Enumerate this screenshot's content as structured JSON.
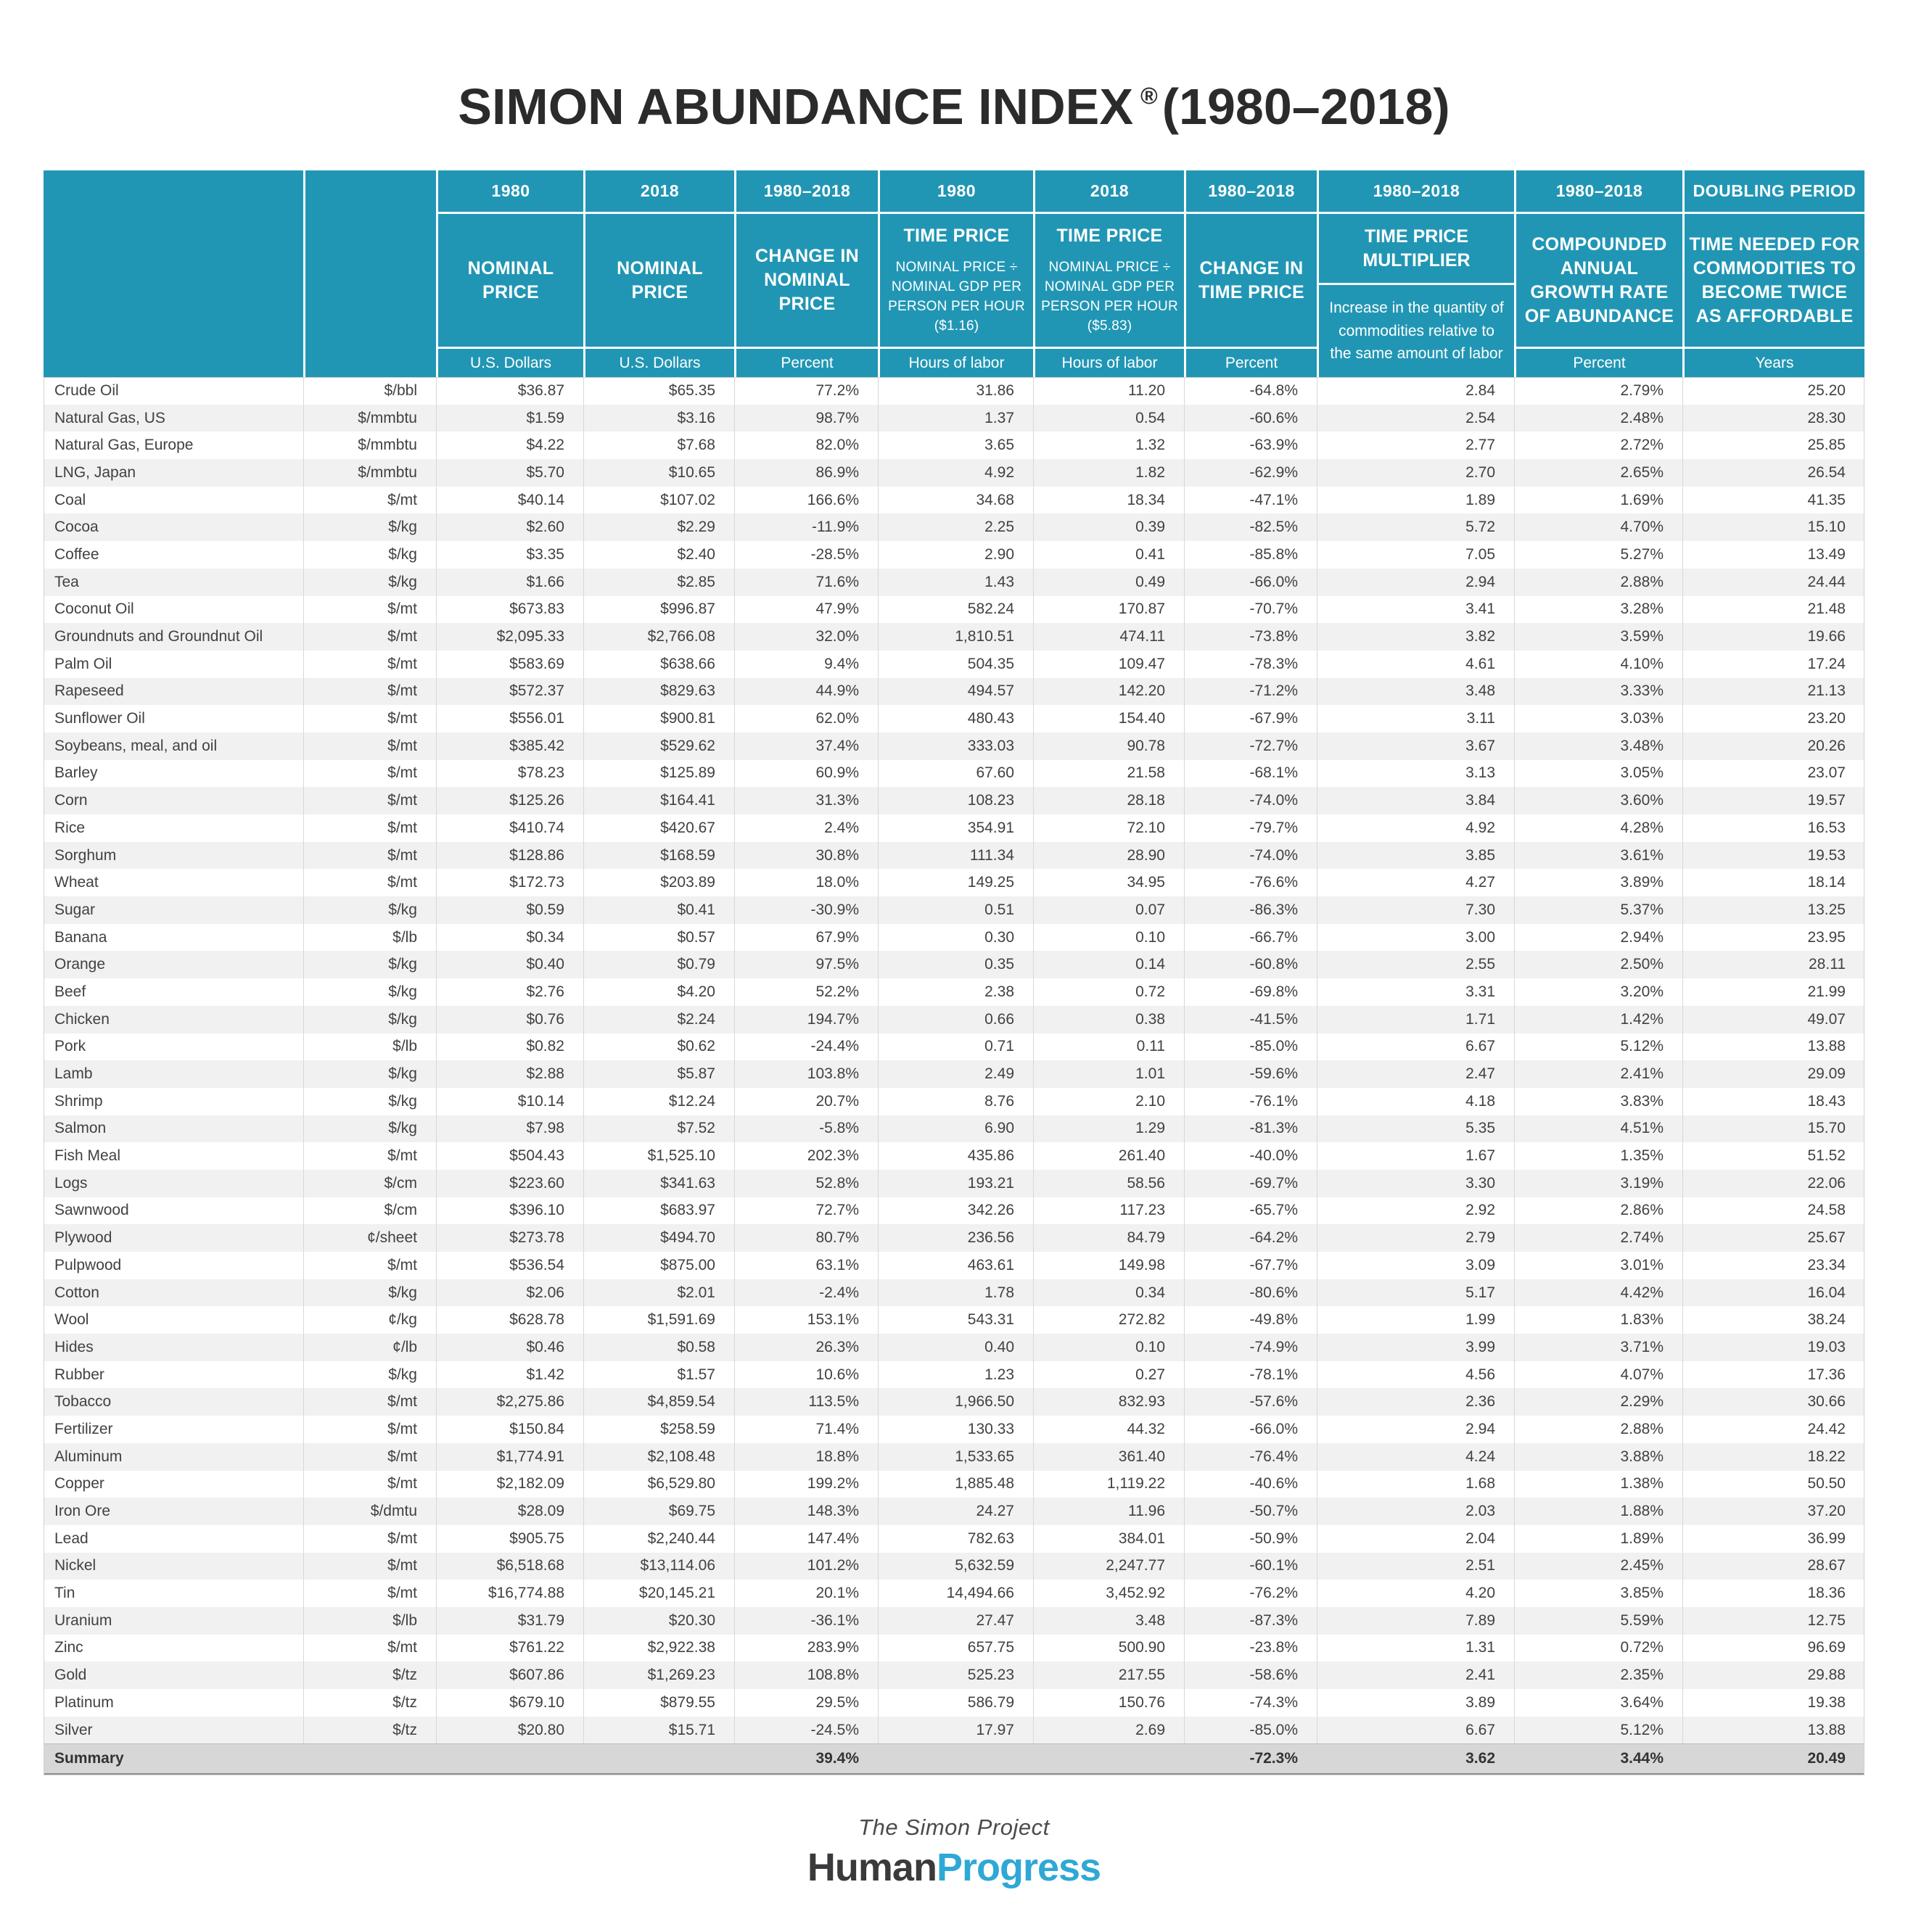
{
  "title": {
    "main": "SIMON ABUNDANCE INDEX",
    "registered": "®",
    "range": "(1980–2018)"
  },
  "chart_data": {
    "type": "table",
    "title": "SIMON ABUNDANCE INDEX ® (1980–2018)",
    "columns": [
      {
        "period": "",
        "title": "",
        "subtitle": "",
        "unit": ""
      },
      {
        "period": "",
        "title": "",
        "subtitle": "",
        "unit": ""
      },
      {
        "period": "1980",
        "title": "NOMINAL PRICE",
        "subtitle": "",
        "unit": "U.S. Dollars"
      },
      {
        "period": "2018",
        "title": "NOMINAL PRICE",
        "subtitle": "",
        "unit": "U.S. Dollars"
      },
      {
        "period": "1980–2018",
        "title": "CHANGE IN NOMINAL PRICE",
        "subtitle": "",
        "unit": "Percent"
      },
      {
        "period": "1980",
        "title": "TIME PRICE",
        "subtitle": "NOMINAL PRICE ÷ NOMINAL GDP PER PERSON PER HOUR ($1.16)",
        "unit": "Hours of labor"
      },
      {
        "period": "2018",
        "title": "TIME PRICE",
        "subtitle": "NOMINAL PRICE ÷ NOMINAL GDP PER PERSON PER HOUR ($5.83)",
        "unit": "Hours of labor"
      },
      {
        "period": "1980–2018",
        "title": "CHANGE IN TIME PRICE",
        "subtitle": "",
        "unit": "Percent"
      },
      {
        "period": "1980–2018",
        "title": "TIME PRICE MULTIPLIER",
        "subtitle": "Increase in the quantity of commodities relative to the same amount of labor",
        "unit": ""
      },
      {
        "period": "1980–2018",
        "title": "COMPOUNDED ANNUAL GROWTH RATE OF ABUNDANCE",
        "subtitle": "",
        "unit": "Percent"
      },
      {
        "period": "DOUBLING PERIOD",
        "title": "TIME NEEDED FOR COMMODITIES TO BECOME TWICE AS AFFORDABLE",
        "subtitle": "",
        "unit": "Years"
      }
    ],
    "rows": [
      [
        "Crude Oil",
        "$/bbl",
        "$36.87",
        "$65.35",
        "77.2%",
        "31.86",
        "11.20",
        "-64.8%",
        "2.84",
        "2.79%",
        "25.20"
      ],
      [
        "Natural Gas, US",
        "$/mmbtu",
        "$1.59",
        "$3.16",
        "98.7%",
        "1.37",
        "0.54",
        "-60.6%",
        "2.54",
        "2.48%",
        "28.30"
      ],
      [
        "Natural Gas, Europe",
        "$/mmbtu",
        "$4.22",
        "$7.68",
        "82.0%",
        "3.65",
        "1.32",
        "-63.9%",
        "2.77",
        "2.72%",
        "25.85"
      ],
      [
        "LNG, Japan",
        "$/mmbtu",
        "$5.70",
        "$10.65",
        "86.9%",
        "4.92",
        "1.82",
        "-62.9%",
        "2.70",
        "2.65%",
        "26.54"
      ],
      [
        "Coal",
        "$/mt",
        "$40.14",
        "$107.02",
        "166.6%",
        "34.68",
        "18.34",
        "-47.1%",
        "1.89",
        "1.69%",
        "41.35"
      ],
      [
        "Cocoa",
        "$/kg",
        "$2.60",
        "$2.29",
        "-11.9%",
        "2.25",
        "0.39",
        "-82.5%",
        "5.72",
        "4.70%",
        "15.10"
      ],
      [
        "Coffee",
        "$/kg",
        "$3.35",
        "$2.40",
        "-28.5%",
        "2.90",
        "0.41",
        "-85.8%",
        "7.05",
        "5.27%",
        "13.49"
      ],
      [
        "Tea",
        "$/kg",
        "$1.66",
        "$2.85",
        "71.6%",
        "1.43",
        "0.49",
        "-66.0%",
        "2.94",
        "2.88%",
        "24.44"
      ],
      [
        "Coconut Oil",
        "$/mt",
        "$673.83",
        "$996.87",
        "47.9%",
        "582.24",
        "170.87",
        "-70.7%",
        "3.41",
        "3.28%",
        "21.48"
      ],
      [
        "Groundnuts and Groundnut Oil",
        "$/mt",
        "$2,095.33",
        "$2,766.08",
        "32.0%",
        "1,810.51",
        "474.11",
        "-73.8%",
        "3.82",
        "3.59%",
        "19.66"
      ],
      [
        "Palm Oil",
        "$/mt",
        "$583.69",
        "$638.66",
        "9.4%",
        "504.35",
        "109.47",
        "-78.3%",
        "4.61",
        "4.10%",
        "17.24"
      ],
      [
        "Rapeseed",
        "$/mt",
        "$572.37",
        "$829.63",
        "44.9%",
        "494.57",
        "142.20",
        "-71.2%",
        "3.48",
        "3.33%",
        "21.13"
      ],
      [
        "Sunflower Oil",
        "$/mt",
        "$556.01",
        "$900.81",
        "62.0%",
        "480.43",
        "154.40",
        "-67.9%",
        "3.11",
        "3.03%",
        "23.20"
      ],
      [
        "Soybeans, meal, and oil",
        "$/mt",
        "$385.42",
        "$529.62",
        "37.4%",
        "333.03",
        "90.78",
        "-72.7%",
        "3.67",
        "3.48%",
        "20.26"
      ],
      [
        "Barley",
        "$/mt",
        "$78.23",
        "$125.89",
        "60.9%",
        "67.60",
        "21.58",
        "-68.1%",
        "3.13",
        "3.05%",
        "23.07"
      ],
      [
        "Corn",
        "$/mt",
        "$125.26",
        "$164.41",
        "31.3%",
        "108.23",
        "28.18",
        "-74.0%",
        "3.84",
        "3.60%",
        "19.57"
      ],
      [
        "Rice",
        "$/mt",
        "$410.74",
        "$420.67",
        "2.4%",
        "354.91",
        "72.10",
        "-79.7%",
        "4.92",
        "4.28%",
        "16.53"
      ],
      [
        "Sorghum",
        "$/mt",
        "$128.86",
        "$168.59",
        "30.8%",
        "111.34",
        "28.90",
        "-74.0%",
        "3.85",
        "3.61%",
        "19.53"
      ],
      [
        "Wheat",
        "$/mt",
        "$172.73",
        "$203.89",
        "18.0%",
        "149.25",
        "34.95",
        "-76.6%",
        "4.27",
        "3.89%",
        "18.14"
      ],
      [
        "Sugar",
        "$/kg",
        "$0.59",
        "$0.41",
        "-30.9%",
        "0.51",
        "0.07",
        "-86.3%",
        "7.30",
        "5.37%",
        "13.25"
      ],
      [
        "Banana",
        "$/lb",
        "$0.34",
        "$0.57",
        "67.9%",
        "0.30",
        "0.10",
        "-66.7%",
        "3.00",
        "2.94%",
        "23.95"
      ],
      [
        "Orange",
        "$/kg",
        "$0.40",
        "$0.79",
        "97.5%",
        "0.35",
        "0.14",
        "-60.8%",
        "2.55",
        "2.50%",
        "28.11"
      ],
      [
        "Beef",
        "$/kg",
        "$2.76",
        "$4.20",
        "52.2%",
        "2.38",
        "0.72",
        "-69.8%",
        "3.31",
        "3.20%",
        "21.99"
      ],
      [
        "Chicken",
        "$/kg",
        "$0.76",
        "$2.24",
        "194.7%",
        "0.66",
        "0.38",
        "-41.5%",
        "1.71",
        "1.42%",
        "49.07"
      ],
      [
        "Pork",
        "$/lb",
        "$0.82",
        "$0.62",
        "-24.4%",
        "0.71",
        "0.11",
        "-85.0%",
        "6.67",
        "5.12%",
        "13.88"
      ],
      [
        "Lamb",
        "$/kg",
        "$2.88",
        "$5.87",
        "103.8%",
        "2.49",
        "1.01",
        "-59.6%",
        "2.47",
        "2.41%",
        "29.09"
      ],
      [
        "Shrimp",
        "$/kg",
        "$10.14",
        "$12.24",
        "20.7%",
        "8.76",
        "2.10",
        "-76.1%",
        "4.18",
        "3.83%",
        "18.43"
      ],
      [
        "Salmon",
        "$/kg",
        "$7.98",
        "$7.52",
        "-5.8%",
        "6.90",
        "1.29",
        "-81.3%",
        "5.35",
        "4.51%",
        "15.70"
      ],
      [
        "Fish Meal",
        "$/mt",
        "$504.43",
        "$1,525.10",
        "202.3%",
        "435.86",
        "261.40",
        "-40.0%",
        "1.67",
        "1.35%",
        "51.52"
      ],
      [
        "Logs",
        "$/cm",
        "$223.60",
        "$341.63",
        "52.8%",
        "193.21",
        "58.56",
        "-69.7%",
        "3.30",
        "3.19%",
        "22.06"
      ],
      [
        "Sawnwood",
        "$/cm",
        "$396.10",
        "$683.97",
        "72.7%",
        "342.26",
        "117.23",
        "-65.7%",
        "2.92",
        "2.86%",
        "24.58"
      ],
      [
        "Plywood",
        "¢/sheet",
        "$273.78",
        "$494.70",
        "80.7%",
        "236.56",
        "84.79",
        "-64.2%",
        "2.79",
        "2.74%",
        "25.67"
      ],
      [
        "Pulpwood",
        "$/mt",
        "$536.54",
        "$875.00",
        "63.1%",
        "463.61",
        "149.98",
        "-67.7%",
        "3.09",
        "3.01%",
        "23.34"
      ],
      [
        "Cotton",
        "$/kg",
        "$2.06",
        "$2.01",
        "-2.4%",
        "1.78",
        "0.34",
        "-80.6%",
        "5.17",
        "4.42%",
        "16.04"
      ],
      [
        "Wool",
        "¢/kg",
        "$628.78",
        "$1,591.69",
        "153.1%",
        "543.31",
        "272.82",
        "-49.8%",
        "1.99",
        "1.83%",
        "38.24"
      ],
      [
        "Hides",
        "¢/lb",
        "$0.46",
        "$0.58",
        "26.3%",
        "0.40",
        "0.10",
        "-74.9%",
        "3.99",
        "3.71%",
        "19.03"
      ],
      [
        "Rubber",
        "$/kg",
        "$1.42",
        "$1.57",
        "10.6%",
        "1.23",
        "0.27",
        "-78.1%",
        "4.56",
        "4.07%",
        "17.36"
      ],
      [
        "Tobacco",
        "$/mt",
        "$2,275.86",
        "$4,859.54",
        "113.5%",
        "1,966.50",
        "832.93",
        "-57.6%",
        "2.36",
        "2.29%",
        "30.66"
      ],
      [
        "Fertilizer",
        "$/mt",
        "$150.84",
        "$258.59",
        "71.4%",
        "130.33",
        "44.32",
        "-66.0%",
        "2.94",
        "2.88%",
        "24.42"
      ],
      [
        "Aluminum",
        "$/mt",
        "$1,774.91",
        "$2,108.48",
        "18.8%",
        "1,533.65",
        "361.40",
        "-76.4%",
        "4.24",
        "3.88%",
        "18.22"
      ],
      [
        "Copper",
        "$/mt",
        "$2,182.09",
        "$6,529.80",
        "199.2%",
        "1,885.48",
        "1,119.22",
        "-40.6%",
        "1.68",
        "1.38%",
        "50.50"
      ],
      [
        "Iron Ore",
        "$/dmtu",
        "$28.09",
        "$69.75",
        "148.3%",
        "24.27",
        "11.96",
        "-50.7%",
        "2.03",
        "1.88%",
        "37.20"
      ],
      [
        "Lead",
        "$/mt",
        "$905.75",
        "$2,240.44",
        "147.4%",
        "782.63",
        "384.01",
        "-50.9%",
        "2.04",
        "1.89%",
        "36.99"
      ],
      [
        "Nickel",
        "$/mt",
        "$6,518.68",
        "$13,114.06",
        "101.2%",
        "5,632.59",
        "2,247.77",
        "-60.1%",
        "2.51",
        "2.45%",
        "28.67"
      ],
      [
        "Tin",
        "$/mt",
        "$16,774.88",
        "$20,145.21",
        "20.1%",
        "14,494.66",
        "3,452.92",
        "-76.2%",
        "4.20",
        "3.85%",
        "18.36"
      ],
      [
        "Uranium",
        "$/lb",
        "$31.79",
        "$20.30",
        "-36.1%",
        "27.47",
        "3.48",
        "-87.3%",
        "7.89",
        "5.59%",
        "12.75"
      ],
      [
        "Zinc",
        "$/mt",
        "$761.22",
        "$2,922.38",
        "283.9%",
        "657.75",
        "500.90",
        "-23.8%",
        "1.31",
        "0.72%",
        "96.69"
      ],
      [
        "Gold",
        "$/tz",
        "$607.86",
        "$1,269.23",
        "108.8%",
        "525.23",
        "217.55",
        "-58.6%",
        "2.41",
        "2.35%",
        "29.88"
      ],
      [
        "Platinum",
        "$/tz",
        "$679.10",
        "$879.55",
        "29.5%",
        "586.79",
        "150.76",
        "-74.3%",
        "3.89",
        "3.64%",
        "19.38"
      ],
      [
        "Silver",
        "$/tz",
        "$20.80",
        "$15.71",
        "-24.5%",
        "17.97",
        "2.69",
        "-85.0%",
        "6.67",
        "5.12%",
        "13.88"
      ]
    ],
    "summary": {
      "label": "Summary",
      "change_nominal": "39.4%",
      "change_time_price": "-72.3%",
      "time_price_multiplier": "3.62",
      "cagr": "3.44%",
      "doubling_period": "20.49"
    }
  },
  "footer": {
    "project": "The Simon Project",
    "logo_left": "Human",
    "logo_right": "Progress"
  },
  "colors": {
    "header_teal": "#2196b4",
    "alt_row": "#f1f1f2",
    "summary_bg": "#d7d7d7",
    "logo_cyan": "#2fa8d5",
    "logo_dark": "#3a3a3c",
    "body_text": "#414141"
  }
}
